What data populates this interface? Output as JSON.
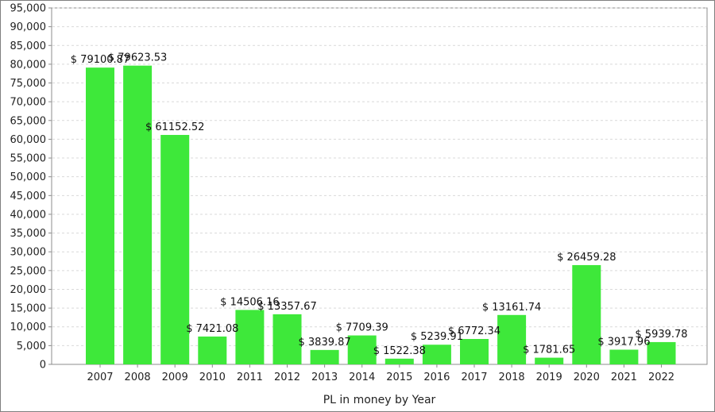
{
  "chart_data": {
    "type": "bar",
    "title": "",
    "xlabel": "PL in money by Year",
    "ylabel": "",
    "categories": [
      "2007",
      "2008",
      "2009",
      "2010",
      "2011",
      "2012",
      "2013",
      "2014",
      "2015",
      "2016",
      "2017",
      "2018",
      "2019",
      "2020",
      "2021",
      "2022"
    ],
    "values": [
      79100.87,
      79623.53,
      61152.52,
      7421.08,
      14506.16,
      13357.67,
      3839.87,
      7709.39,
      1522.38,
      5239.91,
      6772.34,
      13161.74,
      1781.65,
      26459.28,
      3917.96,
      5939.78
    ],
    "data_labels": [
      "$ 79100.87",
      "$ 79623.53",
      "$ 61152.52",
      "$ 7421.08",
      "$ 14506.16",
      "$ 13357.67",
      "$ 3839.87",
      "$ 7709.39",
      "$ 1522.38",
      "$ 5239.91",
      "$ 6772.34",
      "$ 13161.74",
      "$ 1781.65",
      "$ 26459.28",
      "$ 3917.96",
      "$ 5939.78"
    ],
    "ylim": [
      0,
      95000
    ],
    "yticks": [
      "0",
      "5,000",
      "10,000",
      "15,000",
      "20,000",
      "25,000",
      "30,000",
      "35,000",
      "40,000",
      "45,000",
      "50,000",
      "55,000",
      "60,000",
      "65,000",
      "70,000",
      "75,000",
      "80,000",
      "85,000",
      "90,000",
      "95,000"
    ],
    "ytick_values": [
      0,
      5000,
      10000,
      15000,
      20000,
      25000,
      30000,
      35000,
      40000,
      45000,
      50000,
      55000,
      60000,
      65000,
      70000,
      75000,
      80000,
      85000,
      90000,
      95000
    ],
    "grid": true,
    "legend": "none",
    "bar_color": "#3ee83a"
  }
}
